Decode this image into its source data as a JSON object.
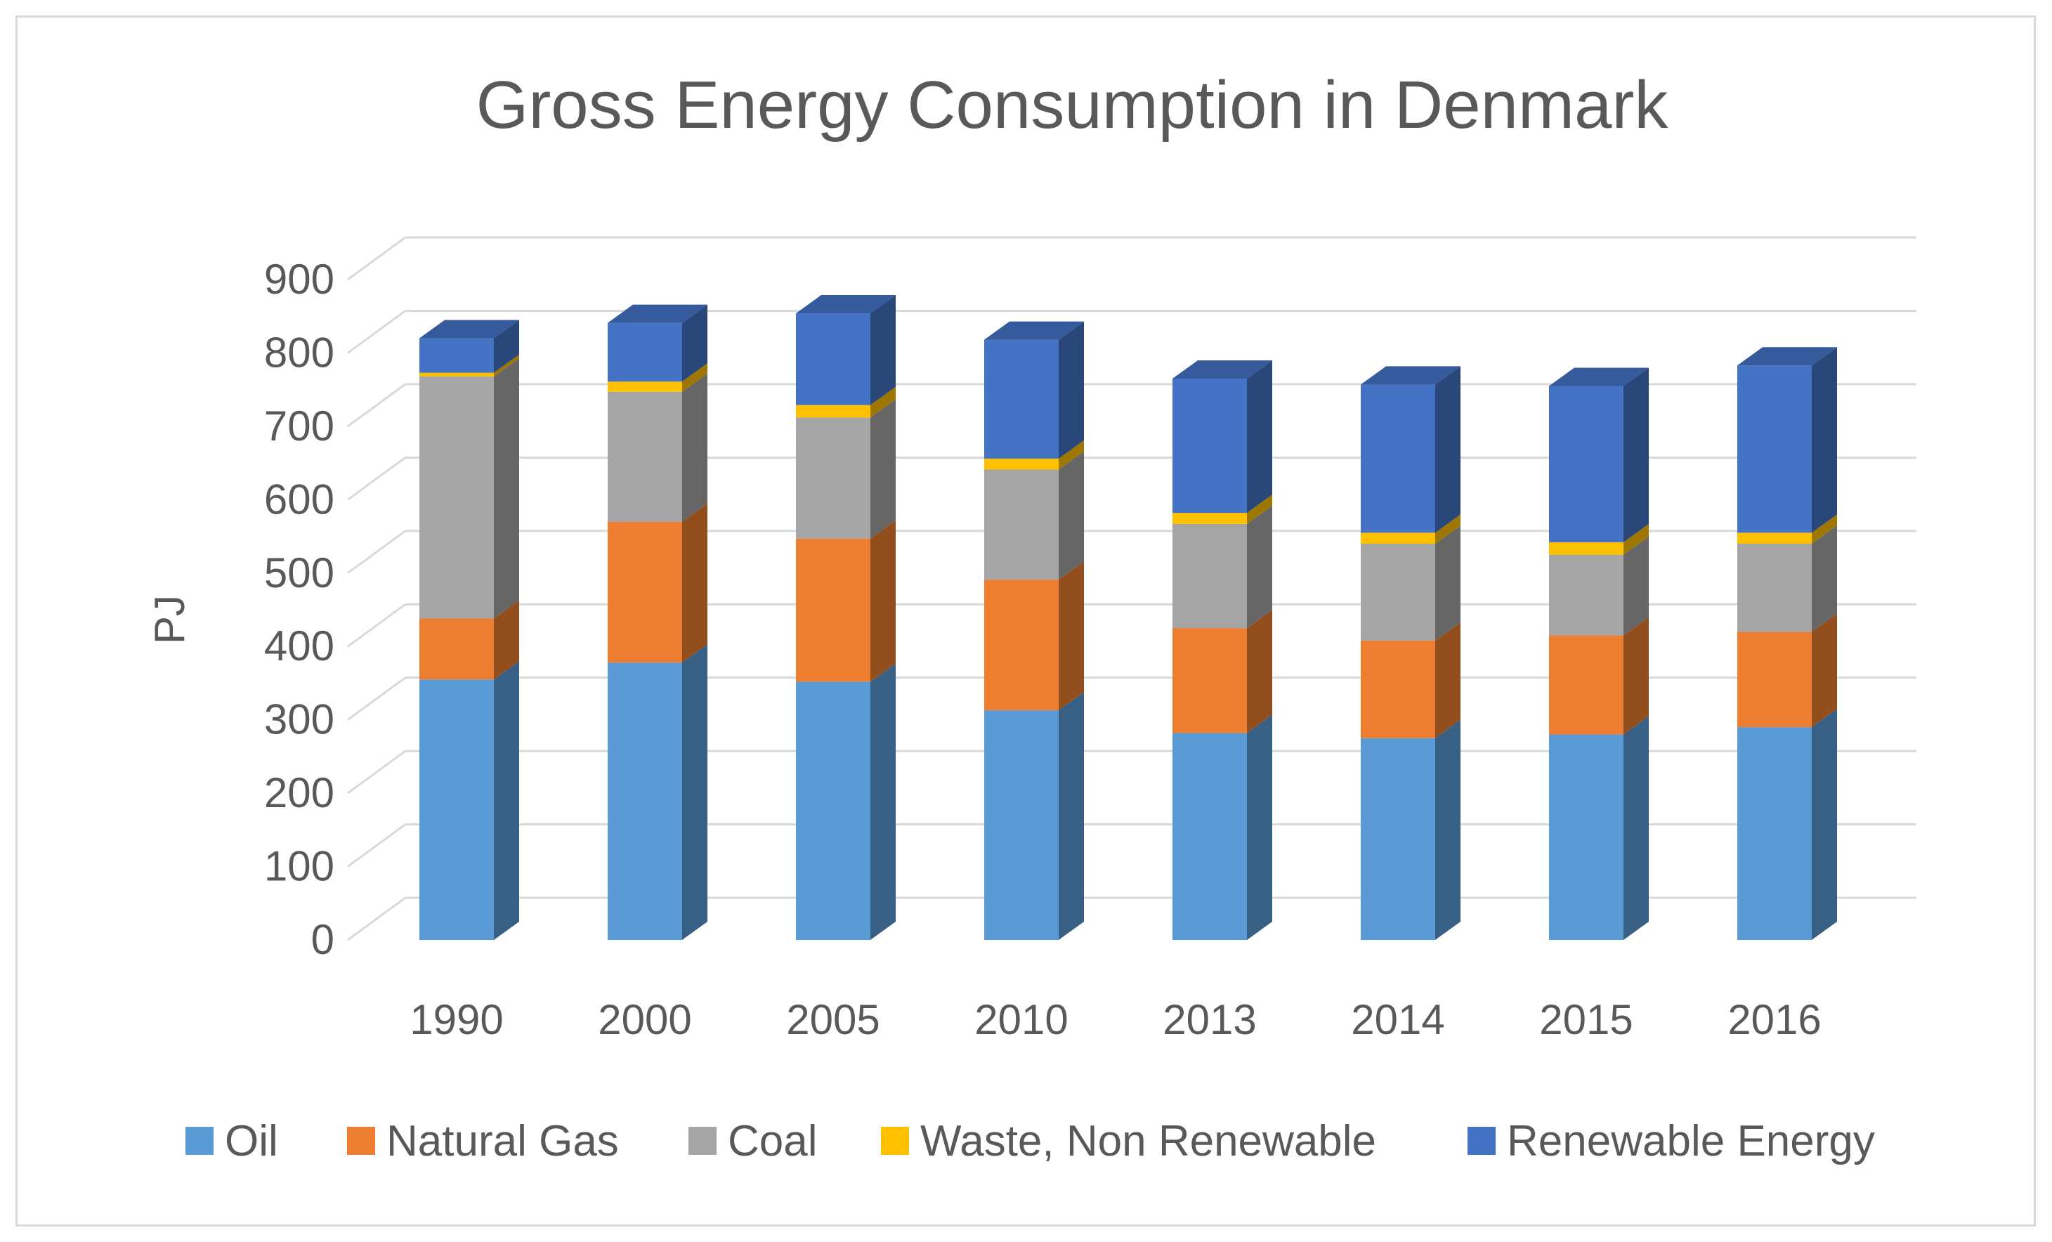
{
  "chart_data": {
    "type": "bar",
    "stacked": true,
    "title": "Gross Energy Consumption in Denmark",
    "xlabel": "",
    "ylabel": "PJ",
    "ylim": [
      0,
      900
    ],
    "yticks": [
      "0",
      "100",
      "200",
      "300",
      "400",
      "500",
      "600",
      "700",
      "800",
      "900"
    ],
    "categories": [
      "1990",
      "2000",
      "2005",
      "2010",
      "2013",
      "2014",
      "2015",
      "2016"
    ],
    "legend_position": "bottom",
    "series": [
      {
        "name": "Oil",
        "color": "#5b9bd5",
        "values": [
          355,
          378,
          352,
          313,
          282,
          275,
          280,
          290
        ]
      },
      {
        "name": "Natural Gas",
        "color": "#ed7d31",
        "values": [
          83,
          192,
          195,
          178,
          143,
          133,
          135,
          130
        ]
      },
      {
        "name": "Coal",
        "color": "#a5a5a5",
        "values": [
          330,
          177,
          165,
          150,
          142,
          132,
          110,
          120
        ]
      },
      {
        "name": "Waste, Non Renewable",
        "color": "#ffc000",
        "values": [
          5,
          14,
          17,
          15,
          15,
          15,
          17,
          15
        ]
      },
      {
        "name": "Renewable Energy",
        "color": "#4472c4",
        "values": [
          47,
          80,
          125,
          162,
          183,
          202,
          213,
          228
        ]
      }
    ]
  }
}
